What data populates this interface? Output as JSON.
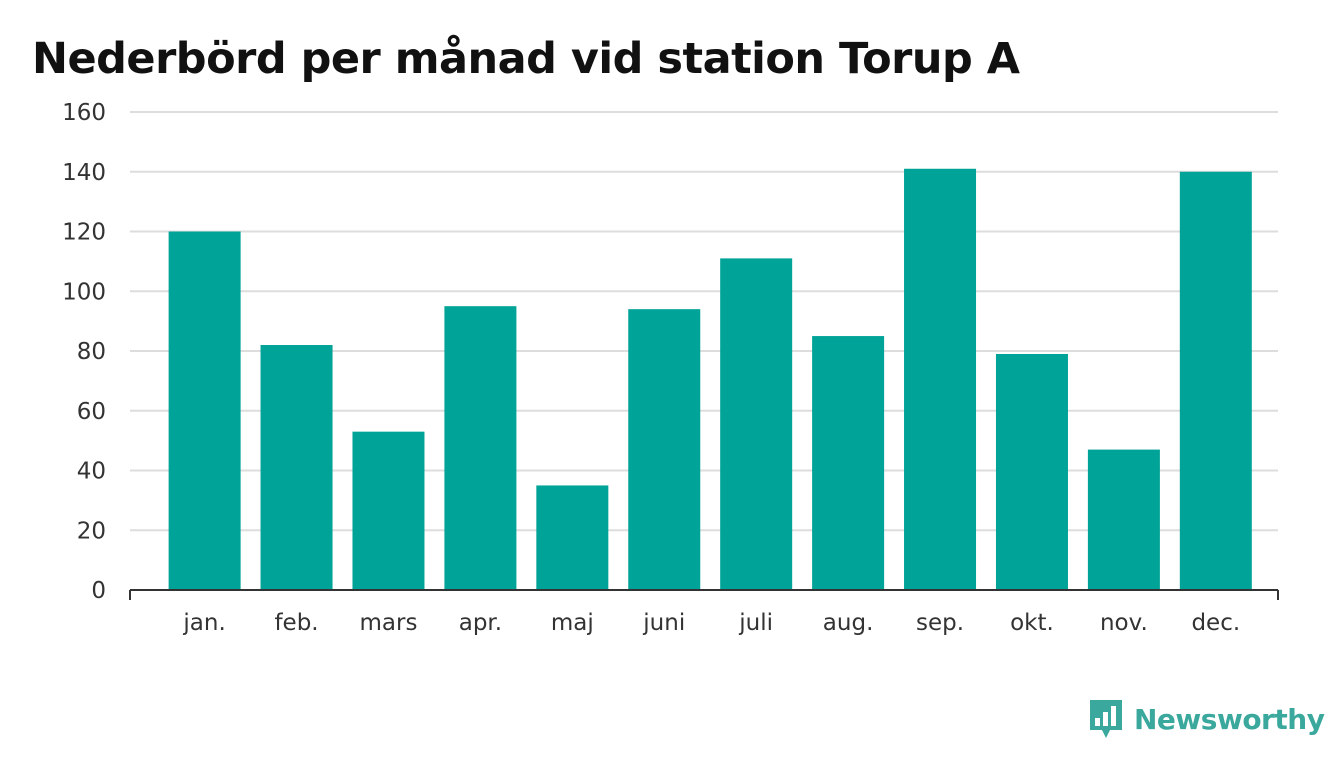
{
  "chart_data": {
    "type": "bar",
    "title": "Nederbörd per månad vid station Torup A",
    "categories": [
      "jan.",
      "feb.",
      "mars",
      "apr.",
      "maj",
      "juni",
      "juli",
      "aug.",
      "sep.",
      "okt.",
      "nov.",
      "dec."
    ],
    "values": [
      120,
      82,
      53,
      95,
      35,
      94,
      111,
      85,
      141,
      79,
      47,
      140
    ],
    "ylim": [
      0,
      160
    ],
    "yticks": [
      0,
      20,
      40,
      60,
      80,
      100,
      120,
      140,
      160
    ],
    "xlabel": "",
    "ylabel": "",
    "grid": true,
    "legend": "none",
    "bar_color": "#00a397"
  },
  "brand": {
    "name": "Newsworthy",
    "icon": "bar-chart-speech-bubble-icon",
    "color": "#3aa89c"
  }
}
